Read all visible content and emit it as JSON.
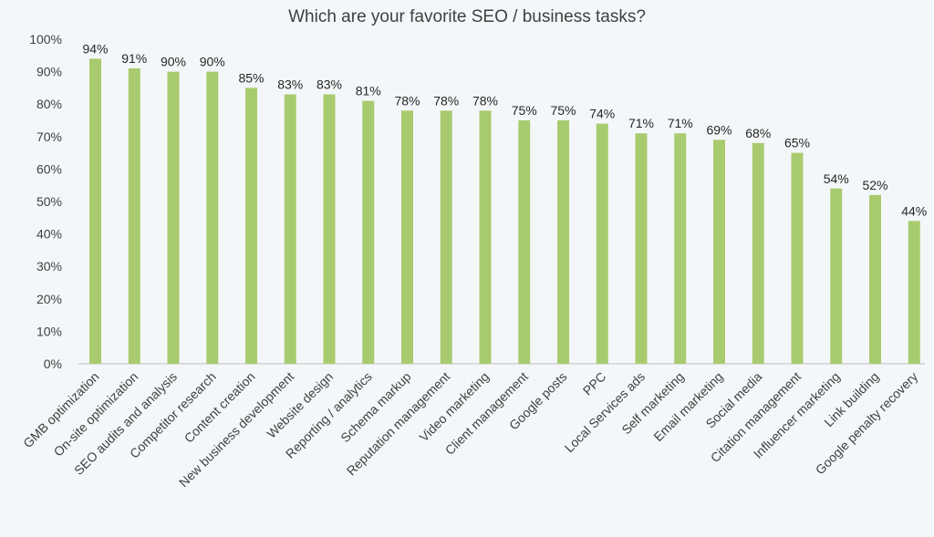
{
  "chart_data": {
    "type": "bar",
    "title": "Which are your favorite SEO / business tasks?",
    "xlabel": "",
    "ylabel": "",
    "ylim": [
      0,
      100
    ],
    "yticks": [
      "0%",
      "10%",
      "20%",
      "30%",
      "40%",
      "50%",
      "60%",
      "70%",
      "80%",
      "90%",
      "100%"
    ],
    "categories": [
      "GMB optimization",
      "On-site optimization",
      "SEO audits and analysis",
      "Competitor research",
      "Content creation",
      "New business development",
      "Website design",
      "Reporting / analytics",
      "Schema markup",
      "Reputation management",
      "Video marketing",
      "Client management",
      "Google posts",
      "PPC",
      "Local Services ads",
      "Self marketing",
      "Email marketing",
      "Social media",
      "Citation management",
      "Influencer marketing",
      "Link building",
      "Google penalty recovery"
    ],
    "values": [
      94,
      91,
      90,
      90,
      85,
      83,
      83,
      81,
      78,
      78,
      78,
      75,
      75,
      74,
      71,
      71,
      69,
      68,
      65,
      54,
      52,
      44
    ],
    "data_labels": [
      "94%",
      "91%",
      "90%",
      "90%",
      "85%",
      "83%",
      "83%",
      "81%",
      "78%",
      "78%",
      "78%",
      "75%",
      "75%",
      "74%",
      "71%",
      "71%",
      "69%",
      "68%",
      "65%",
      "54%",
      "52%",
      "44%"
    ],
    "grid": false,
    "legend": "none",
    "colors": {
      "bar": "#a9cb6f",
      "background": "#f4f7f9",
      "text": "#404040"
    }
  }
}
